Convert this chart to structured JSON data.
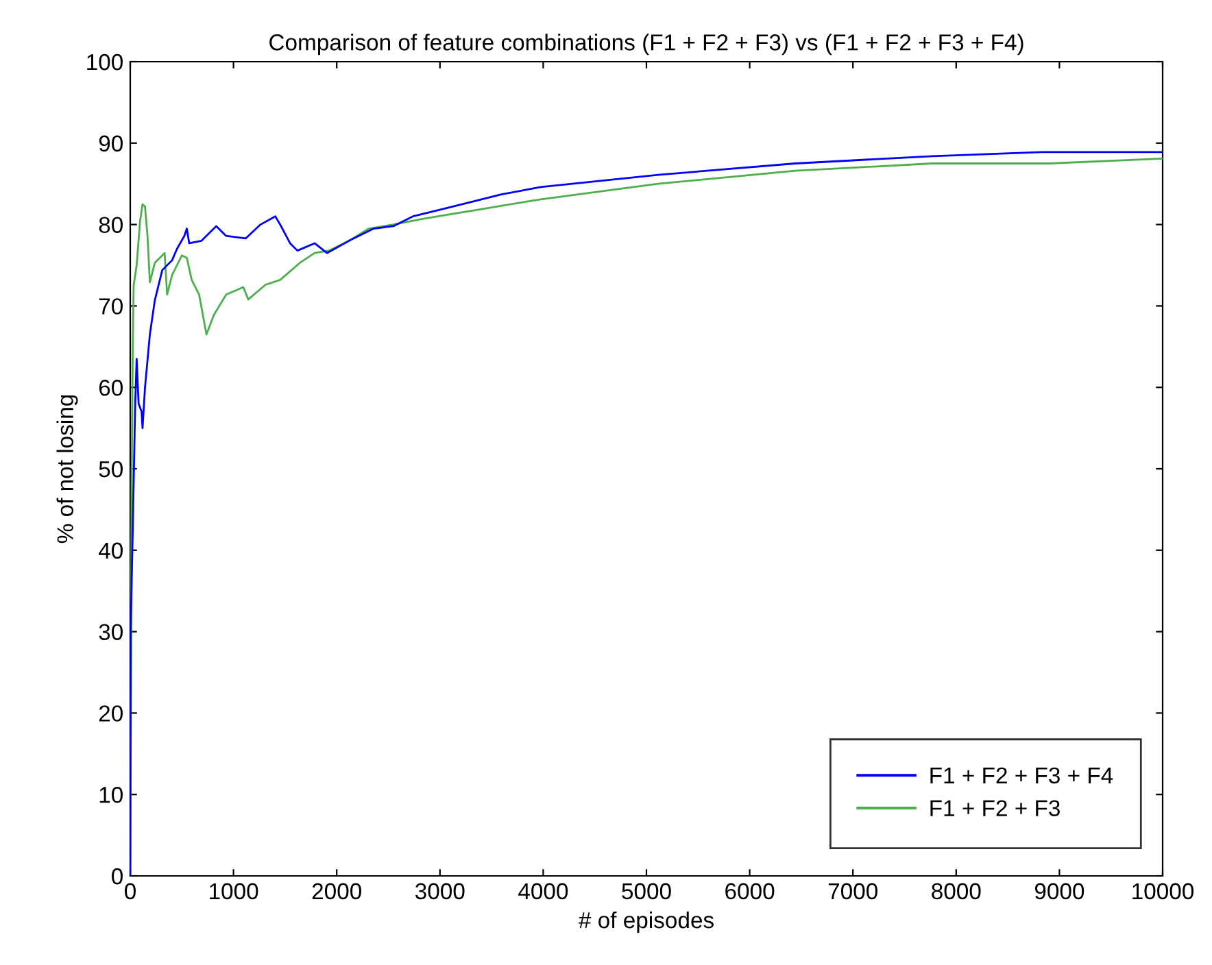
{
  "chart_data": {
    "type": "line",
    "title": "Comparison of feature combinations (F1 + F2 + F3) vs (F1 + F2 + F3 + F4)",
    "xlabel": "# of episodes",
    "ylabel": "% of not losing",
    "xlim": [
      0,
      10000
    ],
    "xticks": [
      0,
      1000,
      2000,
      3000,
      4000,
      5000,
      6000,
      7000,
      8000,
      9000,
      10000
    ],
    "ylim": [
      0,
      100
    ],
    "yticks": [
      0,
      10,
      20,
      30,
      40,
      50,
      60,
      70,
      80,
      90,
      100
    ],
    "grid": false,
    "legend": "bottom right",
    "marker": "none",
    "line_style": "solid",
    "series": [
      {
        "name": "F1 + F2 + F3 + F4",
        "color": "#0000ff",
        "x": [
          0,
          5,
          24,
          48,
          62,
          81,
          110,
          119,
          143,
          190,
          238,
          310,
          405,
          452,
          524,
          548,
          571,
          690,
          833,
          929,
          1119,
          1262,
          1405,
          1452,
          1548,
          1619,
          1786,
          1905,
          2119,
          2357,
          2548,
          2738,
          3024,
          3310,
          3595,
          3976,
          5113,
          6441,
          7769,
          8831,
          10000
        ],
        "values": [
          0,
          30.5,
          42.5,
          58,
          63.5,
          58,
          57,
          55,
          60,
          66.5,
          70.7,
          74.4,
          75.6,
          77,
          78.6,
          79.5,
          77.7,
          78,
          79.8,
          78.6,
          78.3,
          80,
          81,
          80,
          77.7,
          76.8,
          77.7,
          76.5,
          78,
          79.5,
          79.8,
          81,
          81.9,
          82.8,
          83.7,
          84.6,
          86.1,
          87.5,
          88.4,
          88.9,
          88.9
        ]
      },
      {
        "name": "F1 + F2 + F3",
        "color": "#4caf4c",
        "x": [
          0,
          14,
          24,
          33,
          62,
          95,
          119,
          143,
          167,
          190,
          238,
          286,
          333,
          357,
          405,
          500,
          548,
          595,
          667,
          738,
          810,
          929,
          1095,
          1143,
          1310,
          1452,
          1643,
          1786,
          1929,
          2119,
          2310,
          2548,
          2833,
          3119,
          3405,
          3690,
          3976,
          5113,
          6441,
          7769,
          8900,
          10000
        ],
        "values": [
          0,
          48.5,
          65,
          72.5,
          75,
          80.4,
          82.5,
          82.2,
          78.6,
          72.9,
          75.3,
          75.9,
          76.5,
          71.4,
          73.8,
          76.2,
          75.9,
          73.2,
          71.4,
          66.5,
          68.9,
          71.4,
          72.3,
          70.8,
          72.6,
          73.2,
          75.3,
          76.5,
          76.8,
          78,
          79.5,
          80,
          80.7,
          81.3,
          81.9,
          82.5,
          83.1,
          85.0,
          86.6,
          87.5,
          87.5,
          88.1
        ]
      }
    ]
  }
}
